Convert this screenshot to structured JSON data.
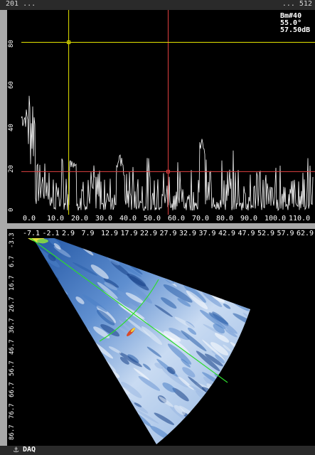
{
  "window": {
    "top_left_text": "201 ...",
    "top_right_text": "... 512"
  },
  "ascan": {
    "readout": {
      "beam": "Bm#40",
      "angle": "55.0°",
      "gain": "57.50dB"
    },
    "y_tick_labels": [
      "80",
      "60",
      "40",
      "20",
      "0"
    ],
    "x_tick_labels": [
      "0.0",
      "10.0",
      "20.0",
      "30.0",
      "40.0",
      "50.0",
      "60.0",
      "70.0",
      "80.0",
      "90.0",
      "100.0",
      "110.0"
    ],
    "colors": {
      "trace": "#ffffff",
      "gate_yellow": "#e6e600",
      "gate_red": "#e04040",
      "background": "#000000"
    },
    "cursor_yellow_x": 20.0,
    "cursor_red_x": 62.0,
    "threshold_yellow_y": 80,
    "threshold_red_y": 20
  },
  "sscan": {
    "top_tick_labels": [
      "-7.1",
      "-2.1",
      "2.9",
      "7.9",
      "12.9",
      "17.9",
      "22.9",
      "27.9",
      "32.9",
      "37.9",
      "42.9",
      "47.9",
      "52.9",
      "57.9",
      "62.9"
    ],
    "left_tick_labels": [
      "-3.3",
      "6.7",
      "16.7",
      "26.7",
      "36.7",
      "46.7",
      "56.7",
      "66.7",
      "76.7",
      "86.7"
    ],
    "colors": {
      "beam_line": "#2ddc2d",
      "background": "#000000"
    }
  },
  "status": {
    "icon": "probe-icon",
    "label": "DAQ"
  }
}
